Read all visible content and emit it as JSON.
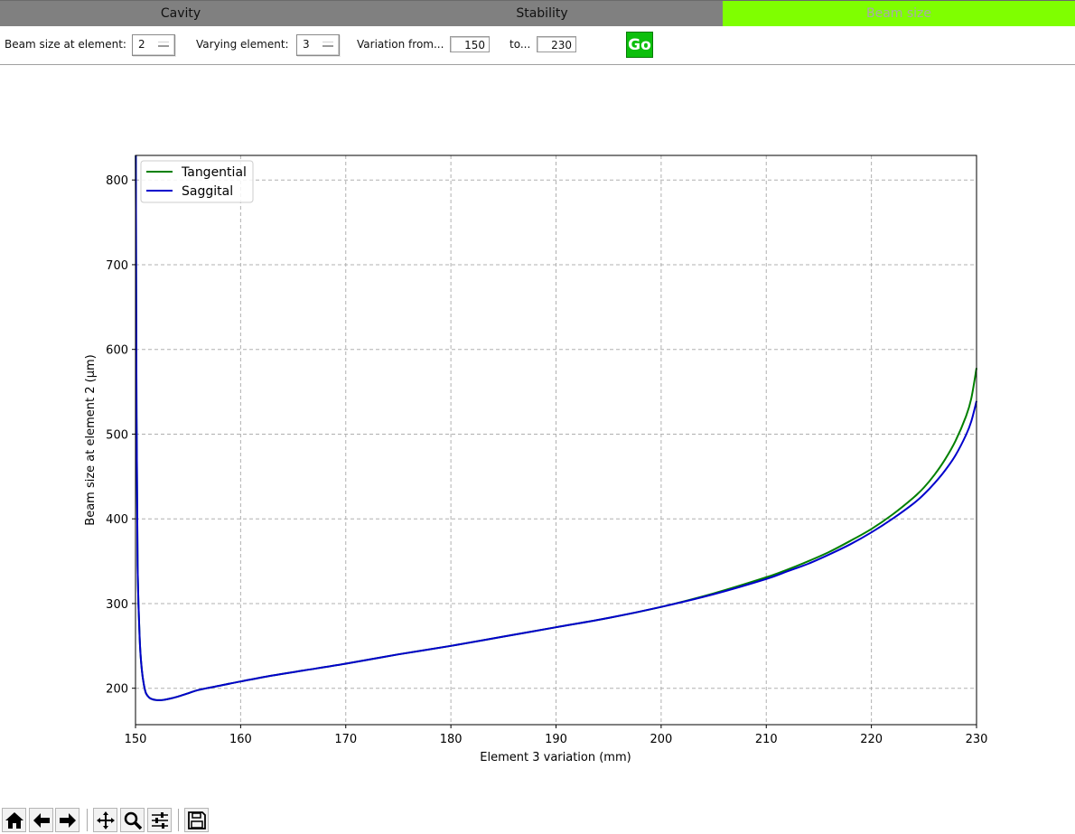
{
  "tabs": [
    {
      "label": "Cavity"
    },
    {
      "label": "Stability"
    },
    {
      "label": "Beam size"
    }
  ],
  "controls": {
    "beam_size_label": "Beam size at element:",
    "beam_size_value": "2",
    "varying_label": "Varying element:",
    "varying_value": "3",
    "variation_from_label": "Variation from...",
    "variation_from_value": "150",
    "to_label": "to...",
    "to_value": "230",
    "go_label": "Go"
  },
  "colors": {
    "active_tab": "#7fff00",
    "inactive_tab": "#808080",
    "go_button": "#0cbf0c",
    "tangential": "#008000",
    "saggital": "#0000cc"
  },
  "toolbar": {
    "icons": [
      "home-icon",
      "back-icon",
      "forward-icon",
      "pan-icon",
      "zoom-icon",
      "configure-icon",
      "save-icon"
    ]
  },
  "chart_data": {
    "type": "line",
    "title": "",
    "xlabel": "Element 3 variation (mm)",
    "ylabel": "Beam size at element 2 (µm)",
    "xlim": [
      150,
      230
    ],
    "ylim": [
      157,
      829
    ],
    "xticks": [
      150,
      160,
      170,
      180,
      190,
      200,
      210,
      220,
      230
    ],
    "yticks": [
      200,
      300,
      400,
      500,
      600,
      700,
      800
    ],
    "grid": true,
    "legend": "top-left",
    "series": [
      {
        "name": "Tangential",
        "color": "#008000",
        "x": [
          150.03,
          150.1,
          150.2,
          150.4,
          150.6,
          150.8,
          151,
          151.3,
          151.6,
          152,
          152.5,
          153,
          154,
          155,
          156,
          158,
          160,
          163,
          166,
          170,
          175,
          180,
          185,
          190,
          195,
          200,
          205,
          210,
          212,
          214,
          216,
          218,
          220,
          222,
          224,
          225,
          226,
          227,
          228,
          229,
          229.5,
          230
        ],
        "y": [
          829,
          520,
          345,
          258,
          222,
          204,
          194,
          189,
          187,
          186,
          186,
          187,
          190,
          194,
          198,
          203,
          208,
          215,
          221,
          229,
          240,
          250,
          261,
          272,
          283,
          296,
          312,
          331,
          340,
          350,
          361,
          374,
          388,
          405,
          425,
          437,
          452,
          470,
          492,
          521,
          542,
          578
        ]
      },
      {
        "name": "Saggital",
        "color": "#0000cc",
        "x": [
          150.03,
          150.1,
          150.2,
          150.4,
          150.6,
          150.8,
          151,
          151.3,
          151.6,
          152,
          152.5,
          153,
          154,
          155,
          156,
          158,
          160,
          163,
          166,
          170,
          175,
          180,
          185,
          190,
          195,
          200,
          205,
          210,
          212,
          214,
          216,
          218,
          220,
          222,
          224,
          225,
          226,
          227,
          228,
          229,
          229.5,
          230
        ],
        "y": [
          829,
          520,
          345,
          258,
          222,
          204,
          194,
          189,
          187,
          186,
          186,
          187,
          190,
          194,
          198,
          203,
          208,
          215,
          221,
          229,
          240,
          250,
          261,
          272,
          283,
          296,
          311,
          329,
          338,
          347,
          358,
          370,
          384,
          400,
          418,
          429,
          442,
          457,
          475,
          499,
          515,
          539
        ]
      }
    ]
  }
}
